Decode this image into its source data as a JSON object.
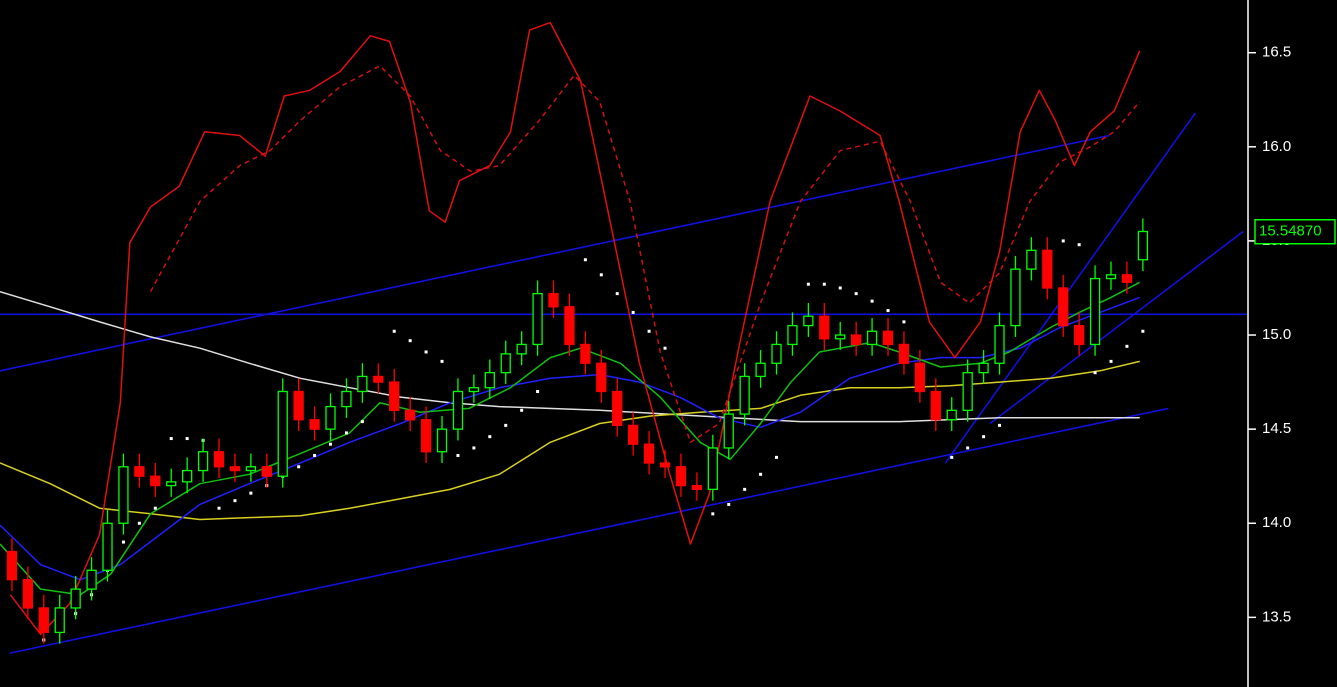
{
  "chart_data": {
    "type": "candlestick",
    "xlim": [
      -0.75,
      77.6
    ],
    "ylim": [
      13.13,
      16.78
    ],
    "yticks": [
      13.5,
      {
        "value": 14,
        "label": "14.0"
      },
      14.5,
      {
        "value": 15,
        "label": "15.0"
      },
      15.5,
      {
        "value": 16,
        "label": "16.0"
      },
      16.5
    ],
    "up_color": "#00ff00",
    "down_color": "#ff0000",
    "open": [
      13.85,
      13.7,
      13.55,
      13.42,
      13.55,
      13.65,
      13.75,
      14.0,
      14.3,
      14.25,
      14.2,
      14.22,
      14.28,
      14.38,
      14.3,
      14.28,
      14.3,
      14.25,
      14.7,
      14.55,
      14.5,
      14.62,
      14.7,
      14.78,
      14.75,
      14.6,
      14.55,
      14.38,
      14.5,
      14.7,
      14.72,
      14.8,
      14.9,
      14.95,
      15.22,
      15.15,
      14.95,
      14.85,
      14.7,
      14.52,
      14.42,
      14.32,
      14.3,
      14.2,
      14.18,
      14.4,
      14.58,
      14.78,
      14.85,
      14.95,
      15.05,
      15.1,
      14.98,
      15.0,
      14.95,
      15.02,
      14.95,
      14.85,
      14.7,
      14.55,
      14.6,
      14.8,
      14.85,
      15.05,
      15.35,
      15.45,
      15.25,
      15.05,
      14.95,
      15.3,
      15.32,
      15.4
    ],
    "high": [
      13.92,
      13.77,
      13.62,
      13.62,
      13.72,
      13.82,
      14.07,
      14.37,
      14.37,
      14.32,
      14.29,
      14.35,
      14.45,
      14.45,
      14.37,
      14.37,
      14.37,
      14.77,
      14.77,
      14.62,
      14.69,
      14.77,
      14.85,
      14.85,
      14.82,
      14.67,
      14.62,
      14.57,
      14.77,
      14.79,
      14.87,
      14.97,
      15.02,
      15.29,
      15.29,
      15.22,
      15.02,
      14.92,
      14.77,
      14.59,
      14.49,
      14.39,
      14.37,
      14.27,
      14.47,
      14.65,
      14.85,
      14.92,
      15.02,
      15.12,
      15.17,
      15.17,
      15.07,
      15.07,
      15.09,
      15.09,
      15.02,
      14.92,
      14.77,
      14.67,
      14.87,
      14.92,
      15.12,
      15.42,
      15.52,
      15.52,
      15.32,
      15.12,
      15.37,
      15.39,
      15.39,
      15.62
    ],
    "low": [
      13.64,
      13.49,
      13.36,
      13.36,
      13.49,
      13.59,
      13.69,
      13.94,
      14.19,
      14.14,
      14.14,
      14.16,
      14.22,
      14.24,
      14.22,
      14.22,
      14.19,
      14.19,
      14.49,
      14.44,
      14.44,
      14.56,
      14.64,
      14.69,
      14.54,
      14.49,
      14.32,
      14.32,
      14.44,
      14.64,
      14.66,
      14.74,
      14.84,
      14.89,
      15.09,
      14.89,
      14.79,
      14.64,
      14.46,
      14.36,
      14.26,
      14.24,
      14.14,
      14.12,
      14.12,
      14.34,
      14.52,
      14.72,
      14.79,
      14.89,
      14.99,
      14.92,
      14.92,
      14.89,
      14.89,
      14.89,
      14.79,
      14.64,
      14.49,
      14.49,
      14.54,
      14.74,
      14.79,
      14.99,
      15.29,
      15.19,
      14.99,
      14.89,
      14.89,
      15.24,
      15.22,
      15.34
    ],
    "close": [
      13.7,
      13.55,
      13.42,
      13.55,
      13.65,
      13.75,
      14.0,
      14.3,
      14.25,
      14.2,
      14.22,
      14.28,
      14.38,
      14.3,
      14.28,
      14.3,
      14.25,
      14.7,
      14.55,
      14.5,
      14.62,
      14.7,
      14.78,
      14.75,
      14.6,
      14.55,
      14.38,
      14.5,
      14.7,
      14.72,
      14.8,
      14.9,
      14.95,
      15.22,
      15.15,
      14.95,
      14.85,
      14.7,
      14.52,
      14.42,
      14.32,
      14.3,
      14.2,
      14.18,
      14.4,
      14.58,
      14.78,
      14.85,
      14.95,
      15.05,
      15.1,
      14.98,
      15.0,
      14.95,
      15.02,
      14.95,
      14.85,
      14.7,
      14.55,
      14.6,
      14.8,
      14.85,
      15.05,
      15.35,
      15.45,
      15.25,
      15.05,
      14.95,
      15.3,
      15.32,
      15.28,
      15.55
    ],
    "last_price": {
      "value": 15.5487,
      "label": "15.54870"
    },
    "trendlines": [
      {
        "color": "#1010e0",
        "x": [
          -0.75,
          68.9
        ],
        "values": [
          14.81,
          16.06
        ]
      },
      {
        "color": "#1010e0",
        "x": [
          -0.13,
          72.6
        ],
        "values": [
          13.31,
          14.61
        ]
      },
      {
        "color": "#1010e0",
        "x": [
          -0.75,
          77.6
        ],
        "values": [
          15.11,
          15.11
        ]
      },
      {
        "color": "#1010e0",
        "x": [
          58.6,
          74.3
        ],
        "values": [
          14.32,
          16.18
        ]
      },
      {
        "color": "#1010e0",
        "x": [
          61.4,
          77.3
        ],
        "values": [
          14.53,
          15.55
        ]
      }
    ],
    "overlays": [
      {
        "color": "#e0e0e0",
        "dash": false,
        "x": [
          -0.75,
          2.4,
          5.5,
          8.7,
          11.8,
          14.9,
          18.1,
          21.2,
          24.4,
          27.5,
          30.6,
          36.9,
          43.2,
          49.5,
          55.7,
          62,
          70.8
        ],
        "values": [
          15.23,
          15.15,
          15.07,
          14.99,
          14.93,
          14.85,
          14.77,
          14.72,
          14.67,
          14.64,
          14.62,
          14.6,
          14.57,
          14.54,
          14.54,
          14.56,
          14.56
        ]
      },
      {
        "color": "#d8d020",
        "dash": false,
        "x": [
          -0.75,
          2.4,
          5.5,
          8.7,
          11.8,
          18.1,
          21.2,
          24.4,
          27.5,
          30.6,
          33.8,
          36.9,
          40.1,
          43.2,
          47,
          49.5,
          52.6,
          55.7,
          58.9,
          62,
          65.2,
          68.3,
          70.8
        ],
        "values": [
          14.32,
          14.21,
          14.08,
          14.05,
          14.02,
          14.04,
          14.08,
          14.13,
          14.18,
          14.26,
          14.43,
          14.53,
          14.57,
          14.59,
          14.61,
          14.68,
          14.72,
          14.72,
          14.73,
          14.75,
          14.77,
          14.81,
          14.86
        ]
      },
      {
        "color": "#2020ff",
        "dash": false,
        "x": [
          -0.75,
          1.8,
          4.3,
          6.8,
          9.3,
          11.8,
          14.9,
          18.1,
          21.2,
          24.4,
          27.5,
          30.6,
          33.8,
          36.9,
          39.4,
          41.9,
          44.4,
          47,
          49.5,
          52.6,
          55.7,
          58.3,
          60.8,
          63.3,
          65.8,
          68.3,
          70.8
        ],
        "values": [
          13.99,
          13.78,
          13.7,
          13.78,
          13.94,
          14.1,
          14.21,
          14.32,
          14.43,
          14.53,
          14.64,
          14.72,
          14.77,
          14.79,
          14.75,
          14.67,
          14.56,
          14.51,
          14.59,
          14.77,
          14.85,
          14.88,
          14.88,
          14.93,
          15.04,
          15.12,
          15.2
        ]
      },
      {
        "color": "#10c010",
        "dash": false,
        "x": [
          -0.75,
          1.8,
          4.3,
          6.2,
          8.7,
          11.8,
          14.9,
          18.1,
          21.2,
          23.1,
          25.6,
          28.7,
          31.3,
          33.8,
          35.7,
          38.2,
          40.7,
          43.2,
          45.1,
          47,
          48.9,
          50.7,
          53.9,
          55.7,
          58.3,
          60.8,
          62.6,
          65.2,
          67,
          69,
          70.8
        ],
        "values": [
          13.89,
          13.65,
          13.62,
          13.73,
          14.05,
          14.21,
          14.26,
          14.37,
          14.48,
          14.64,
          14.59,
          14.61,
          14.72,
          14.88,
          14.93,
          14.85,
          14.67,
          14.43,
          14.34,
          14.53,
          14.75,
          14.91,
          14.96,
          14.91,
          14.83,
          14.85,
          14.91,
          15.04,
          15.12,
          15.2,
          15.28
        ]
      },
      {
        "color": "#d01010",
        "dash": true,
        "x": [
          8.7,
          11.8,
          14.3,
          16.2,
          18.1,
          20.6,
          23.1,
          25,
          26.9,
          28.8,
          30.6,
          33.1,
          35.3,
          36.9,
          38.8,
          40.7,
          42.6,
          44.4,
          47,
          49.5,
          52,
          54.5,
          56.4,
          58.3,
          60.1,
          62,
          63.9,
          65.8,
          67.7,
          69.2,
          70.8
        ],
        "values": [
          15.23,
          15.71,
          15.9,
          15.98,
          16.14,
          16.32,
          16.43,
          16.27,
          15.98,
          15.87,
          15.9,
          16.14,
          16.38,
          16.24,
          15.71,
          14.91,
          14.43,
          14.53,
          15.17,
          15.71,
          15.98,
          16.03,
          15.71,
          15.28,
          15.17,
          15.33,
          15.71,
          15.92,
          16.0,
          16.08,
          16.24
        ]
      },
      {
        "color": "#e01010",
        "dash": false,
        "x": [
          -0.1,
          1.8,
          3.6,
          5.5,
          6.8,
          7.4,
          8.7,
          10.5,
          12.1,
          14.3,
          15.9,
          17.1,
          18.7,
          20.6,
          22.5,
          23.7,
          25,
          26.2,
          27.2,
          28.1,
          30,
          31.3,
          32.5,
          33.8,
          35.7,
          36.9,
          39.4,
          41.3,
          42.6,
          43.8,
          45.7,
          47.6,
          50.1,
          52,
          54.5,
          55.7,
          57.6,
          59.2,
          60.8,
          62,
          63.3,
          64.5,
          65.5,
          66.7,
          67.7,
          69.2,
          70.8
        ],
        "values": [
          13.62,
          13.41,
          13.57,
          13.94,
          14.64,
          15.49,
          15.68,
          15.79,
          16.08,
          16.06,
          15.95,
          16.27,
          16.3,
          16.4,
          16.59,
          16.56,
          16.24,
          15.66,
          15.6,
          15.82,
          15.9,
          16.08,
          16.62,
          16.66,
          16.35,
          15.87,
          14.85,
          14.26,
          13.89,
          14.16,
          14.96,
          15.71,
          16.27,
          16.19,
          16.06,
          15.71,
          15.07,
          14.88,
          15.07,
          15.44,
          16.08,
          16.3,
          16.14,
          15.9,
          16.08,
          16.19,
          16.51
        ]
      }
    ],
    "sar": {
      "color": "#ffffff",
      "values": [
        null,
        null,
        13.38,
        13.45,
        13.52,
        13.62,
        13.75,
        13.9,
        14.0,
        14.08,
        14.45,
        14.45,
        14.44,
        14.08,
        14.12,
        14.16,
        14.2,
        14.25,
        14.3,
        14.36,
        14.42,
        14.48,
        14.54,
        null,
        15.02,
        14.97,
        14.91,
        14.86,
        14.36,
        14.4,
        14.46,
        14.52,
        14.6,
        14.7,
        null,
        null,
        15.4,
        15.32,
        15.22,
        15.12,
        15.02,
        14.93,
        null,
        null,
        14.05,
        14.1,
        14.18,
        14.26,
        14.35,
        null,
        15.27,
        15.27,
        15.25,
        15.22,
        15.18,
        15.13,
        15.07,
        null,
        null,
        14.35,
        14.4,
        14.46,
        14.52,
        null,
        null,
        null,
        15.5,
        15.48,
        14.8,
        14.86,
        14.94,
        15.02
      ]
    }
  }
}
